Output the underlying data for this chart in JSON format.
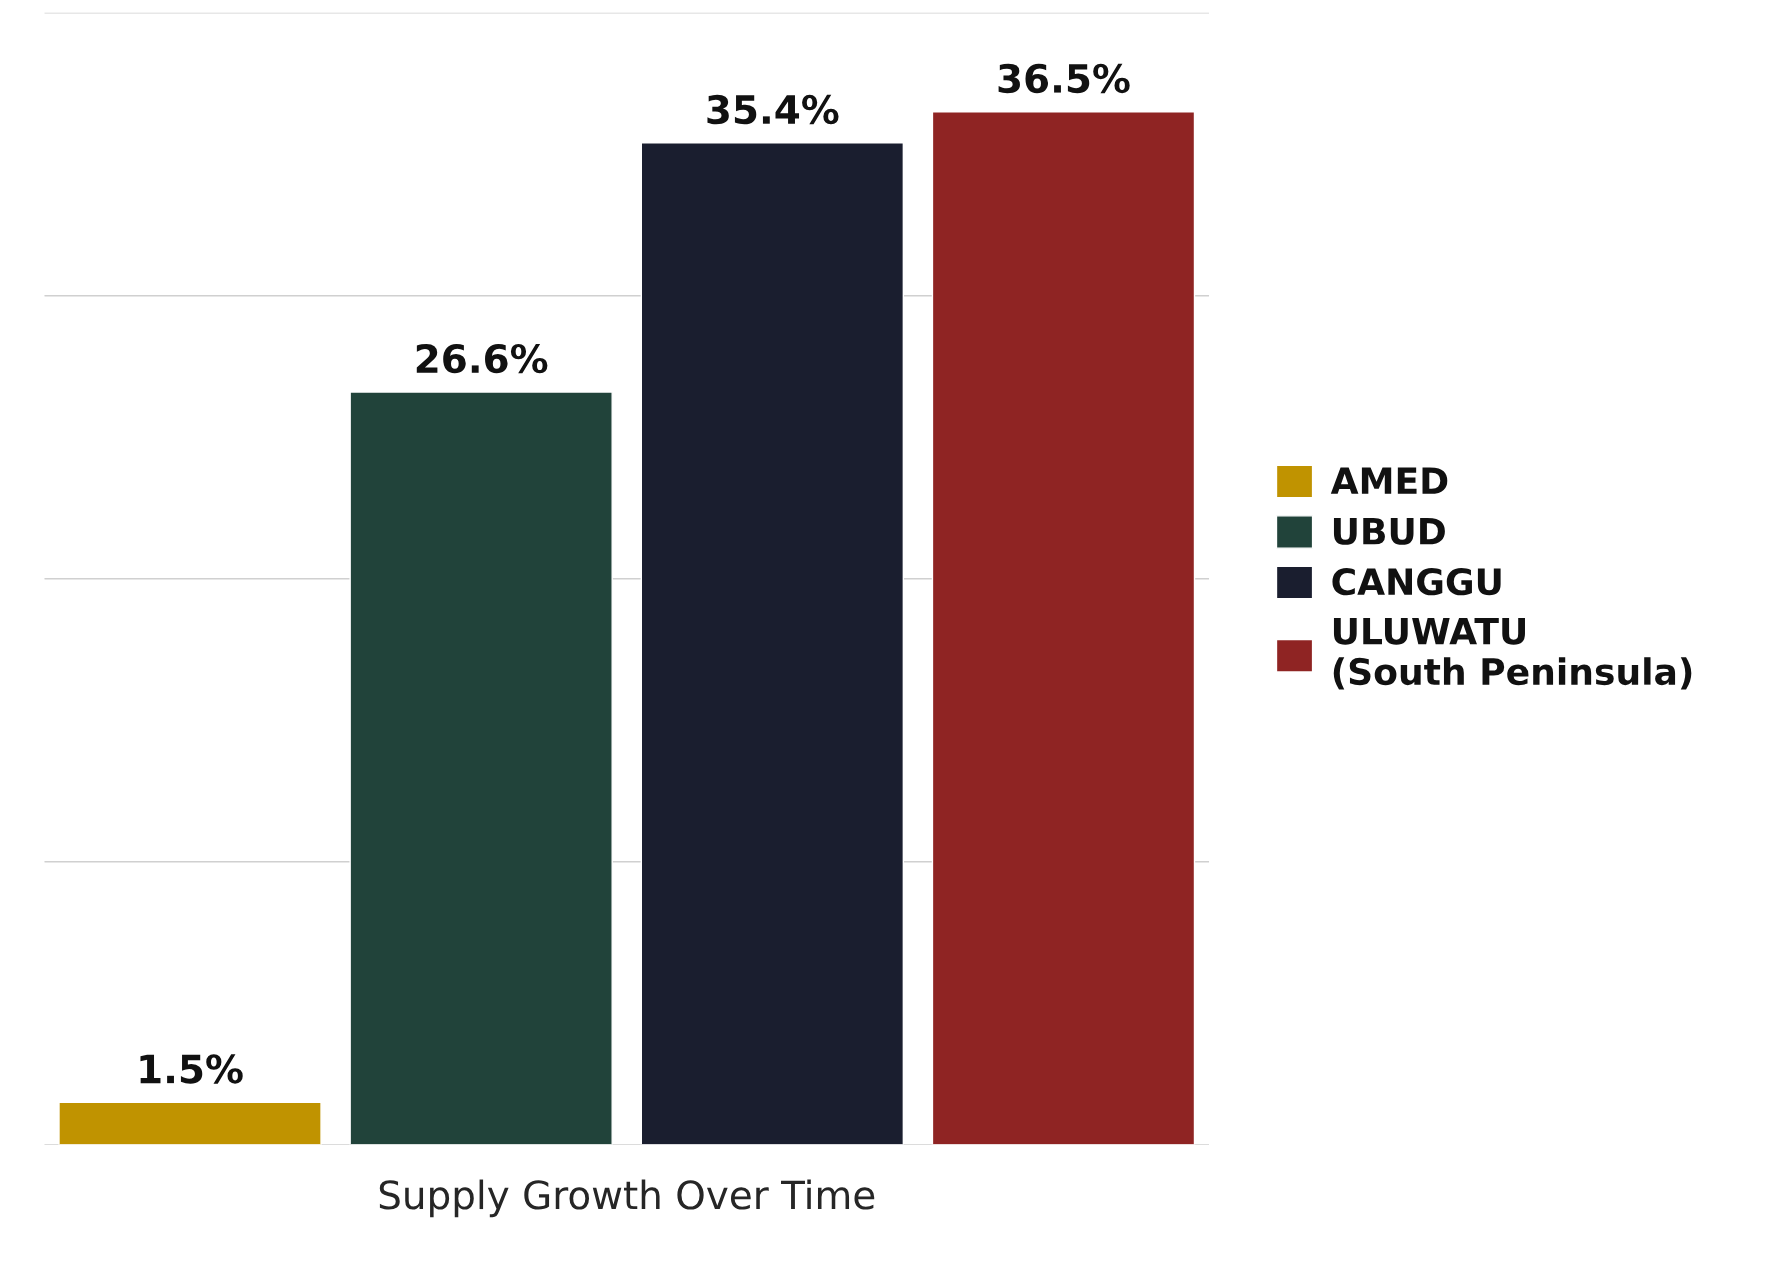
{
  "chart_data": {
    "type": "bar",
    "xlabel": "Supply Growth Over Time",
    "stacked": true,
    "categories": [
      null,
      null,
      null,
      null
    ],
    "series": [
      {
        "name": "AMED",
        "color": "#c09300",
        "values": [
          1.5,
          null,
          null,
          null
        ],
        "value_labels": [
          "1.5%",
          null,
          null,
          null
        ]
      },
      {
        "name": "UBUD",
        "color": "#21433a",
        "values": [
          null,
          26.6,
          null,
          null
        ],
        "value_labels": [
          null,
          "26.6%",
          null,
          null
        ]
      },
      {
        "name": "CANGGU",
        "color": "#1a1e2f",
        "values": [
          null,
          null,
          35.4,
          null
        ],
        "value_labels": [
          null,
          null,
          "35.4%",
          null
        ]
      },
      {
        "name": "ULUWATU\n(South Peninsula)",
        "color": "#8f2423",
        "values": [
          null,
          null,
          null,
          36.5
        ],
        "value_labels": [
          null,
          null,
          null,
          "36.5%"
        ]
      }
    ],
    "ylim": [
      0,
      40
    ],
    "yticks": [
      {
        "value": 0,
        "label": null
      },
      {
        "value": 10,
        "label": null
      },
      {
        "value": 20,
        "label": null
      },
      {
        "value": 30,
        "label": null
      },
      {
        "value": 40,
        "label": null
      }
    ],
    "grid": "y",
    "legend": "right",
    "tick_labels": false
  }
}
